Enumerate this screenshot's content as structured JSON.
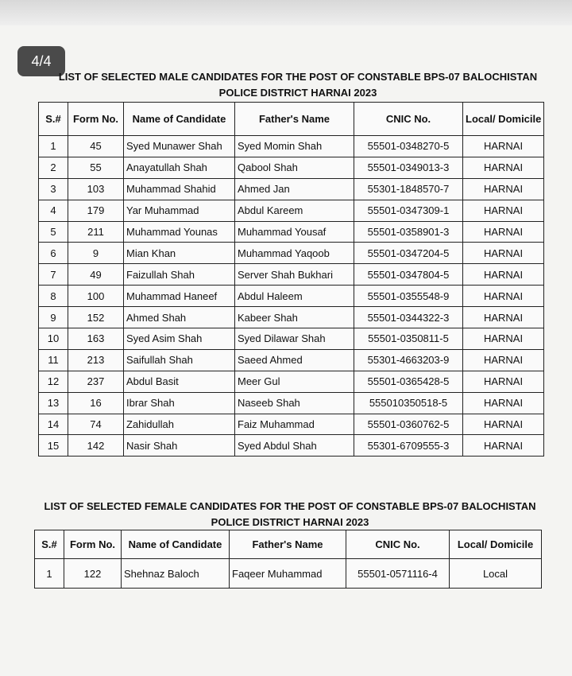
{
  "badge": "4/4",
  "male_list": {
    "title_lines": [
      "LIST OF SELECTED  MALE CANDIDATES FOR THE POST OF CONSTABLE BPS-07 BALOCHISTAN",
      "POLICE DISTRICT HARNAI 2023"
    ],
    "headers": [
      "S.#",
      "Form No.",
      "Name of Candidate",
      "Father's Name",
      "CNIC No.",
      "Local/ Domicile"
    ],
    "rows": [
      [
        "1",
        "45",
        "Syed Munawer Shah",
        "Syed Momin Shah",
        "55501-0348270-5",
        "HARNAI"
      ],
      [
        "2",
        "55",
        "Anayatullah Shah",
        "Qabool Shah",
        "55501-0349013-3",
        "HARNAI"
      ],
      [
        "3",
        "103",
        "Muhammad Shahid",
        "Ahmed Jan",
        "55301-1848570-7",
        "HARNAI"
      ],
      [
        "4",
        "179",
        "Yar Muhammad",
        "Abdul Kareem",
        "55501-0347309-1",
        "HARNAI"
      ],
      [
        "5",
        "211",
        "Muhammad Younas",
        "Muhammad Yousaf",
        "55501-0358901-3",
        "HARNAI"
      ],
      [
        "6",
        "9",
        "Mian Khan",
        "Muhammad Yaqoob",
        "55501-0347204-5",
        "HARNAI"
      ],
      [
        "7",
        "49",
        "Faizullah Shah",
        "Server Shah Bukhari",
        "55501-0347804-5",
        "HARNAI"
      ],
      [
        "8",
        "100",
        "Muhammad Haneef",
        "Abdul Haleem",
        "55501-0355548-9",
        "HARNAI"
      ],
      [
        "9",
        "152",
        "Ahmed Shah",
        "Kabeer Shah",
        "55501-0344322-3",
        "HARNAI"
      ],
      [
        "10",
        "163",
        "Syed Asim Shah",
        "Syed Dilawar Shah",
        "55501-0350811-5",
        "HARNAI"
      ],
      [
        "11",
        "213",
        "Saifullah Shah",
        "Saeed Ahmed",
        "55301-4663203-9",
        "HARNAI"
      ],
      [
        "12",
        "237",
        "Abdul Basit",
        "Meer Gul",
        "55501-0365428-5",
        "HARNAI"
      ],
      [
        "13",
        "16",
        "Ibrar Shah",
        "Naseeb Shah",
        "555010350518-5",
        "HARNAI"
      ],
      [
        "14",
        "74",
        "Zahidullah",
        "Faiz Muhammad",
        "55501-0360762-5",
        "HARNAI"
      ],
      [
        "15",
        "142",
        "Nasir Shah",
        "Syed Abdul Shah",
        "55301-6709555-3",
        "HARNAI"
      ]
    ]
  },
  "female_list": {
    "title_lines": [
      "LIST OF SELECTED FEMALE CANDIDATES  FOR THE POST OF CONSTABLE BPS-07 BALOCHISTAN",
      "POLICE DISTRICT HARNAI 2023"
    ],
    "headers": [
      "S.#",
      "Form No.",
      "Name of Candidate",
      "Father's Name",
      "CNIC No.",
      "Local/ Domicile"
    ],
    "rows": [
      [
        "1",
        "122",
        "Shehnaz Baloch",
        "Faqeer Muhammad",
        "55501-0571116-4",
        "Local"
      ]
    ]
  }
}
